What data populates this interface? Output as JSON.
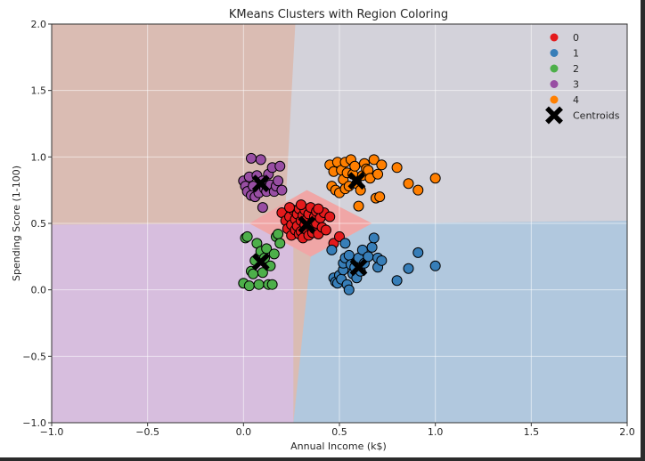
{
  "chart_data": {
    "type": "scatter",
    "title": "KMeans Clusters with Region Coloring",
    "xlabel": "Annual Income (k$)",
    "ylabel": "Spending Score (1-100)",
    "xlim": [
      -1.0,
      2.0
    ],
    "ylim": [
      -1.0,
      2.0
    ],
    "xticks": [
      "−1.0",
      "−0.5",
      "0.0",
      "0.5",
      "1.0",
      "1.5",
      "2.0"
    ],
    "yticks": [
      "−1.0",
      "−0.5",
      "0.0",
      "0.5",
      "1.0",
      "1.5",
      "2.0"
    ],
    "grid": true,
    "legend_position": "top-right",
    "series": [
      {
        "name": "0",
        "color": "#e41a1c",
        "region_color": "#f0a6a6",
        "points": [
          [
            0.2,
            0.58
          ],
          [
            0.22,
            0.52
          ],
          [
            0.23,
            0.46
          ],
          [
            0.24,
            0.55
          ],
          [
            0.25,
            0.49
          ],
          [
            0.25,
            0.41
          ],
          [
            0.26,
            0.6
          ],
          [
            0.27,
            0.53
          ],
          [
            0.27,
            0.45
          ],
          [
            0.28,
            0.57
          ],
          [
            0.28,
            0.48
          ],
          [
            0.29,
            0.42
          ],
          [
            0.29,
            0.61
          ],
          [
            0.3,
            0.52
          ],
          [
            0.3,
            0.44
          ],
          [
            0.31,
            0.56
          ],
          [
            0.31,
            0.39
          ],
          [
            0.32,
            0.49
          ],
          [
            0.32,
            0.6
          ],
          [
            0.33,
            0.45
          ],
          [
            0.33,
            0.53
          ],
          [
            0.34,
            0.41
          ],
          [
            0.34,
            0.57
          ],
          [
            0.35,
            0.48
          ],
          [
            0.35,
            0.62
          ],
          [
            0.36,
            0.51
          ],
          [
            0.36,
            0.43
          ],
          [
            0.37,
            0.55
          ],
          [
            0.37,
            0.46
          ],
          [
            0.38,
            0.59
          ],
          [
            0.38,
            0.5
          ],
          [
            0.39,
            0.42
          ],
          [
            0.4,
            0.54
          ],
          [
            0.41,
            0.47
          ],
          [
            0.42,
            0.58
          ],
          [
            0.43,
            0.45
          ],
          [
            0.45,
            0.55
          ],
          [
            0.47,
            0.35
          ],
          [
            0.5,
            0.4
          ],
          [
            0.24,
            0.62
          ],
          [
            0.3,
            0.64
          ],
          [
            0.39,
            0.61
          ]
        ],
        "centroid": [
          0.33,
          0.49
        ]
      },
      {
        "name": "1",
        "color": "#377eb8",
        "region_color": "#b1c8de",
        "points": [
          [
            0.46,
            0.3
          ],
          [
            0.47,
            0.09
          ],
          [
            0.48,
            0.06
          ],
          [
            0.49,
            0.05
          ],
          [
            0.5,
            0.11
          ],
          [
            0.51,
            0.08
          ],
          [
            0.52,
            0.15
          ],
          [
            0.52,
            0.2
          ],
          [
            0.53,
            0.35
          ],
          [
            0.53,
            0.24
          ],
          [
            0.54,
            0.04
          ],
          [
            0.55,
            0.0
          ],
          [
            0.55,
            0.26
          ],
          [
            0.56,
            0.19
          ],
          [
            0.57,
            0.12
          ],
          [
            0.58,
            0.17
          ],
          [
            0.59,
            0.09
          ],
          [
            0.6,
            0.24
          ],
          [
            0.61,
            0.14
          ],
          [
            0.62,
            0.3
          ],
          [
            0.63,
            0.2
          ],
          [
            0.65,
            0.25
          ],
          [
            0.67,
            0.32
          ],
          [
            0.68,
            0.39
          ],
          [
            0.7,
            0.24
          ],
          [
            0.7,
            0.17
          ],
          [
            0.72,
            0.22
          ],
          [
            0.8,
            0.07
          ],
          [
            0.86,
            0.16
          ],
          [
            0.91,
            0.28
          ],
          [
            1.0,
            0.18
          ]
        ],
        "centroid": [
          0.6,
          0.17
        ]
      },
      {
        "name": "2",
        "color": "#4daf4a",
        "region_color": "",
        "points": [
          [
            0.0,
            0.05
          ],
          [
            0.01,
            0.39
          ],
          [
            0.02,
            0.4
          ],
          [
            0.03,
            0.03
          ],
          [
            0.04,
            0.14
          ],
          [
            0.05,
            0.12
          ],
          [
            0.06,
            0.22
          ],
          [
            0.07,
            0.35
          ],
          [
            0.08,
            0.04
          ],
          [
            0.09,
            0.29
          ],
          [
            0.1,
            0.13
          ],
          [
            0.11,
            0.24
          ],
          [
            0.12,
            0.31
          ],
          [
            0.13,
            0.04
          ],
          [
            0.14,
            0.18
          ],
          [
            0.15,
            0.04
          ],
          [
            0.16,
            0.27
          ],
          [
            0.17,
            0.4
          ],
          [
            0.18,
            0.42
          ],
          [
            0.19,
            0.35
          ]
        ],
        "centroid": [
          0.09,
          0.21
        ]
      },
      {
        "name": "3",
        "color": "#984ea3",
        "region_color": "#d7bede",
        "points": [
          [
            0.0,
            0.82
          ],
          [
            0.01,
            0.78
          ],
          [
            0.02,
            0.74
          ],
          [
            0.03,
            0.85
          ],
          [
            0.04,
            0.71
          ],
          [
            0.05,
            0.78
          ],
          [
            0.06,
            0.7
          ],
          [
            0.07,
            0.86
          ],
          [
            0.08,
            0.73
          ],
          [
            0.09,
            0.98
          ],
          [
            0.1,
            0.82
          ],
          [
            0.11,
            0.76
          ],
          [
            0.12,
            0.74
          ],
          [
            0.13,
            0.87
          ],
          [
            0.14,
            0.79
          ],
          [
            0.15,
            0.92
          ],
          [
            0.16,
            0.74
          ],
          [
            0.17,
            0.78
          ],
          [
            0.18,
            0.82
          ],
          [
            0.19,
            0.93
          ],
          [
            0.2,
            0.75
          ],
          [
            0.04,
            0.99
          ],
          [
            0.1,
            0.62
          ]
        ],
        "centroid": [
          0.09,
          0.8
        ]
      },
      {
        "name": "4",
        "color": "#ff7f00",
        "region_color": "#d3d2da",
        "points": [
          [
            0.45,
            0.94
          ],
          [
            0.46,
            0.78
          ],
          [
            0.47,
            0.89
          ],
          [
            0.48,
            0.75
          ],
          [
            0.49,
            0.96
          ],
          [
            0.5,
            0.73
          ],
          [
            0.51,
            0.9
          ],
          [
            0.52,
            0.83
          ],
          [
            0.53,
            0.76
          ],
          [
            0.53,
            0.96
          ],
          [
            0.54,
            0.88
          ],
          [
            0.55,
            0.78
          ],
          [
            0.56,
            0.98
          ],
          [
            0.57,
            0.87
          ],
          [
            0.58,
            0.93
          ],
          [
            0.59,
            0.8
          ],
          [
            0.6,
            0.63
          ],
          [
            0.61,
            0.75
          ],
          [
            0.62,
            0.86
          ],
          [
            0.63,
            0.95
          ],
          [
            0.64,
            0.91
          ],
          [
            0.65,
            0.9
          ],
          [
            0.66,
            0.84
          ],
          [
            0.68,
            0.98
          ],
          [
            0.69,
            0.69
          ],
          [
            0.7,
            0.87
          ],
          [
            0.71,
            0.7
          ],
          [
            0.72,
            0.94
          ],
          [
            0.8,
            0.92
          ],
          [
            0.86,
            0.8
          ],
          [
            0.91,
            0.75
          ],
          [
            1.0,
            0.84
          ]
        ],
        "centroid": [
          0.59,
          0.82
        ]
      }
    ],
    "centroids_label": "Centroids",
    "background_region_color": "#dabcb3"
  }
}
